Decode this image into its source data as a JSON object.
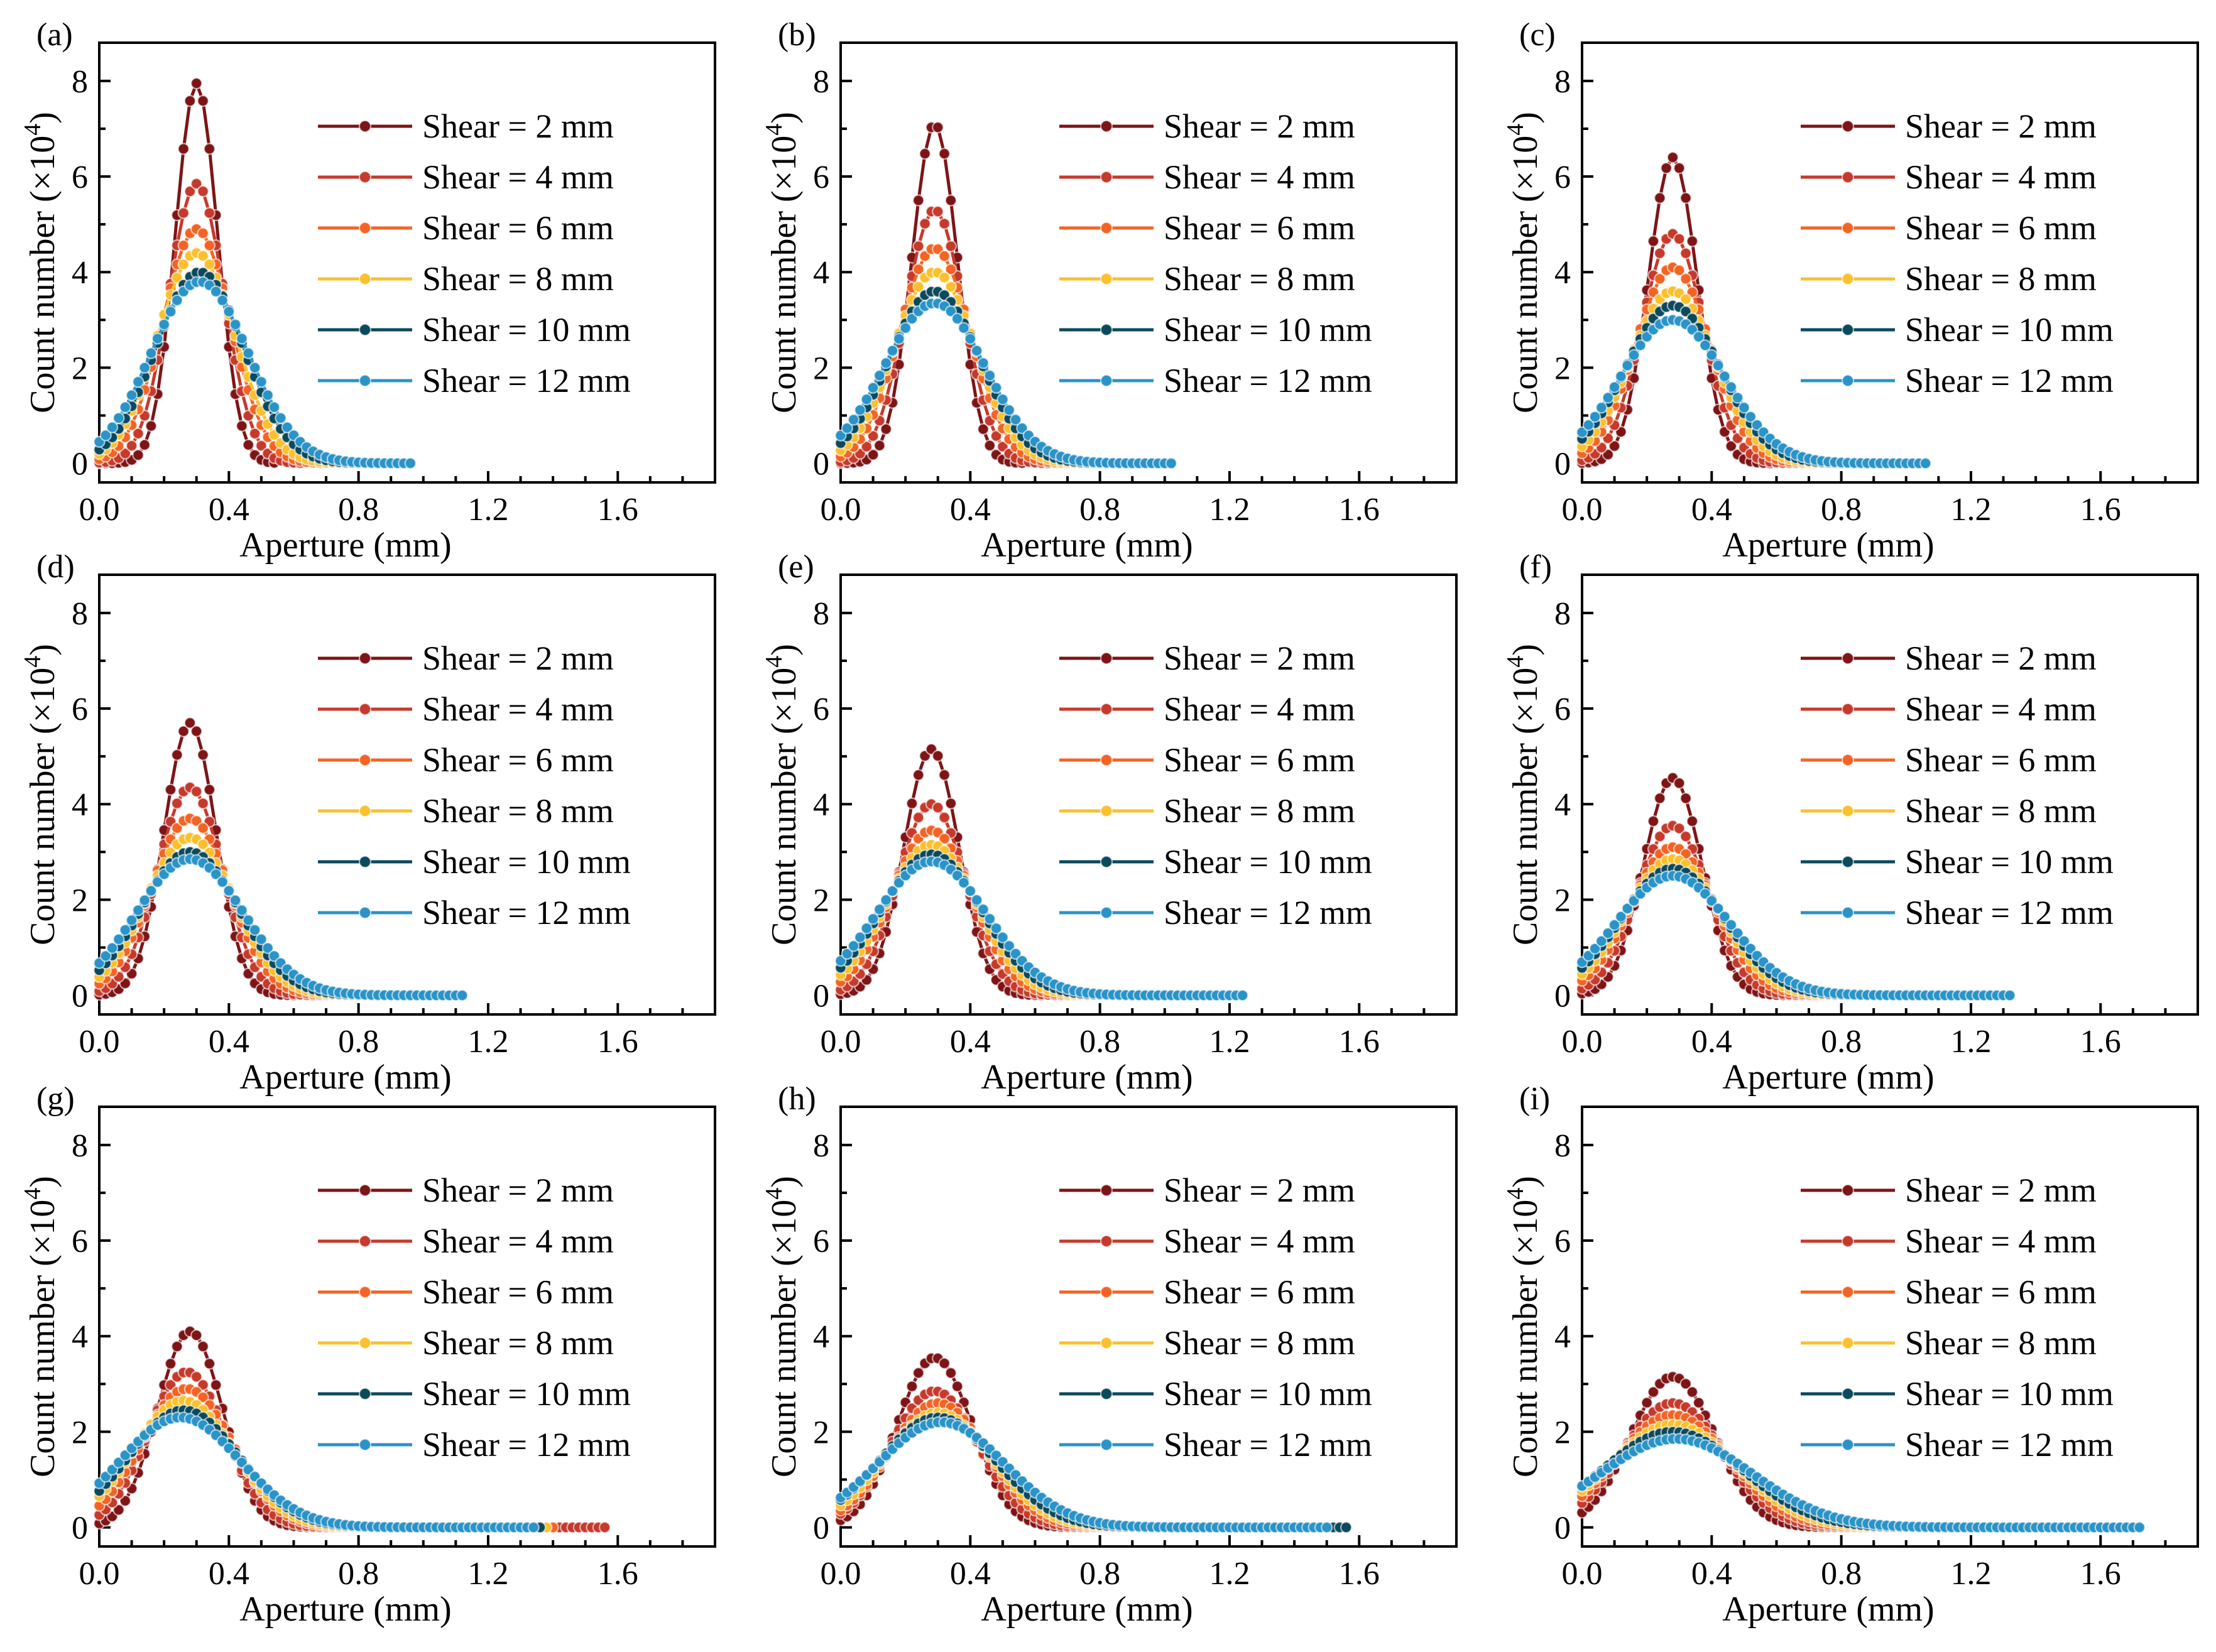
{
  "figure": {
    "colors": {
      "shear_2": "#7e1416",
      "shear_4": "#c53a2c",
      "shear_6": "#f36424",
      "shear_8": "#fbc02d",
      "shear_10": "#0b4a5c",
      "shear_12": "#2a93c8"
    }
  },
  "chart_data": [
    {
      "panel": "(a)",
      "type": "line",
      "xlabel": "Aperture (mm)",
      "ylabel": "Count number (×10",
      "ylabel_exp": "4",
      "ylabel_close": ")",
      "xlim": [
        0,
        1.9
      ],
      "ylim": [
        -0.4,
        8.8
      ],
      "xticks": [
        "0.0",
        "0.4",
        "0.8",
        "1.2",
        "1.6"
      ],
      "yticks": [
        "0",
        "2",
        "4",
        "6",
        "8"
      ],
      "series": [
        {
          "name": "Shear = 2 mm",
          "color": "#7e1416",
          "peak": 7.95,
          "mu": 0.3,
          "sigma": 0.065,
          "xmax": 0.54
        },
        {
          "name": "Shear = 4 mm",
          "color": "#c53a2c",
          "peak": 5.85,
          "mu": 0.3,
          "sigma": 0.085,
          "xmax": 0.62
        },
        {
          "name": "Shear = 6 mm",
          "color": "#f36424",
          "peak": 4.9,
          "mu": 0.3,
          "sigma": 0.105,
          "xmax": 0.7
        },
        {
          "name": "Shear = 8 mm",
          "color": "#fbc02d",
          "peak": 4.4,
          "mu": 0.3,
          "sigma": 0.12,
          "xmax": 0.78
        },
        {
          "name": "Shear = 10 mm",
          "color": "#0b4a5c",
          "peak": 4.0,
          "mu": 0.31,
          "sigma": 0.135,
          "xmax": 0.88
        },
        {
          "name": "Shear = 12 mm",
          "color": "#2a93c8",
          "peak": 3.8,
          "mu": 0.31,
          "sigma": 0.15,
          "xmax": 0.96
        }
      ]
    },
    {
      "panel": "(b)",
      "type": "line",
      "xlabel": "Aperture (mm)",
      "ylabel": "Count number (×10",
      "ylabel_exp": "4",
      "ylabel_close": ")",
      "xlim": [
        0,
        1.9
      ],
      "ylim": [
        -0.4,
        8.8
      ],
      "xticks": [
        "0.0",
        "0.4",
        "0.8",
        "1.2",
        "1.6"
      ],
      "yticks": [
        "0",
        "2",
        "4",
        "6",
        "8"
      ],
      "series": [
        {
          "name": "Shear = 2 mm",
          "color": "#7e1416",
          "peak": 7.1,
          "mu": 0.29,
          "sigma": 0.07,
          "xmax": 0.56
        },
        {
          "name": "Shear = 4 mm",
          "color": "#c53a2c",
          "peak": 5.3,
          "mu": 0.29,
          "sigma": 0.09,
          "xmax": 0.64
        },
        {
          "name": "Shear = 6 mm",
          "color": "#f36424",
          "peak": 4.5,
          "mu": 0.29,
          "sigma": 0.11,
          "xmax": 0.74
        },
        {
          "name": "Shear = 8 mm",
          "color": "#fbc02d",
          "peak": 4.0,
          "mu": 0.29,
          "sigma": 0.125,
          "xmax": 0.82
        },
        {
          "name": "Shear = 10 mm",
          "color": "#0b4a5c",
          "peak": 3.6,
          "mu": 0.29,
          "sigma": 0.14,
          "xmax": 0.92
        },
        {
          "name": "Shear = 12 mm",
          "color": "#2a93c8",
          "peak": 3.35,
          "mu": 0.29,
          "sigma": 0.155,
          "xmax": 1.02
        }
      ]
    },
    {
      "panel": "(c)",
      "type": "line",
      "xlabel": "Aperture (mm)",
      "ylabel": "Count number (×10",
      "ylabel_exp": "4",
      "ylabel_close": ")",
      "xlim": [
        0,
        1.9
      ],
      "ylim": [
        -0.4,
        8.8
      ],
      "xticks": [
        "0.0",
        "0.4",
        "0.8",
        "1.2",
        "1.6"
      ],
      "yticks": [
        "0",
        "2",
        "4",
        "6",
        "8"
      ],
      "series": [
        {
          "name": "Shear = 2 mm",
          "color": "#7e1416",
          "peak": 6.4,
          "mu": 0.28,
          "sigma": 0.075,
          "xmax": 0.58
        },
        {
          "name": "Shear = 4 mm",
          "color": "#c53a2c",
          "peak": 4.8,
          "mu": 0.28,
          "sigma": 0.095,
          "xmax": 0.68
        },
        {
          "name": "Shear = 6 mm",
          "color": "#f36424",
          "peak": 4.1,
          "mu": 0.28,
          "sigma": 0.115,
          "xmax": 0.78
        },
        {
          "name": "Shear = 8 mm",
          "color": "#fbc02d",
          "peak": 3.6,
          "mu": 0.28,
          "sigma": 0.13,
          "xmax": 0.86
        },
        {
          "name": "Shear = 10 mm",
          "color": "#0b4a5c",
          "peak": 3.3,
          "mu": 0.28,
          "sigma": 0.145,
          "xmax": 0.96
        },
        {
          "name": "Shear = 12 mm",
          "color": "#2a93c8",
          "peak": 3.0,
          "mu": 0.28,
          "sigma": 0.16,
          "xmax": 1.06
        }
      ]
    },
    {
      "panel": "(d)",
      "type": "line",
      "xlabel": "Aperture (mm)",
      "ylabel": "Count number (×10",
      "ylabel_exp": "4",
      "ylabel_close": ")",
      "xlim": [
        0,
        1.9
      ],
      "ylim": [
        -0.4,
        8.8
      ],
      "xticks": [
        "0.0",
        "0.4",
        "0.8",
        "1.2",
        "1.6"
      ],
      "yticks": [
        "0",
        "2",
        "4",
        "6",
        "8"
      ],
      "series": [
        {
          "name": "Shear = 2 mm",
          "color": "#7e1416",
          "peak": 5.7,
          "mu": 0.28,
          "sigma": 0.08,
          "xmax": 0.6
        },
        {
          "name": "Shear = 4 mm",
          "color": "#c53a2c",
          "peak": 4.35,
          "mu": 0.28,
          "sigma": 0.1,
          "xmax": 0.7
        },
        {
          "name": "Shear = 6 mm",
          "color": "#f36424",
          "peak": 3.7,
          "mu": 0.28,
          "sigma": 0.12,
          "xmax": 0.8
        },
        {
          "name": "Shear = 8 mm",
          "color": "#fbc02d",
          "peak": 3.3,
          "mu": 0.28,
          "sigma": 0.135,
          "xmax": 0.9
        },
        {
          "name": "Shear = 10 mm",
          "color": "#0b4a5c",
          "peak": 3.0,
          "mu": 0.28,
          "sigma": 0.15,
          "xmax": 1.0
        },
        {
          "name": "Shear = 12 mm",
          "color": "#2a93c8",
          "peak": 2.85,
          "mu": 0.28,
          "sigma": 0.165,
          "xmax": 1.12
        }
      ]
    },
    {
      "panel": "(e)",
      "type": "line",
      "xlabel": "Aperture (mm)",
      "ylabel": "Count number (×10",
      "ylabel_exp": "4",
      "ylabel_close": ")",
      "xlim": [
        0,
        1.9
      ],
      "ylim": [
        -0.4,
        8.8
      ],
      "xticks": [
        "0.0",
        "0.4",
        "0.8",
        "1.2",
        "1.6"
      ],
      "yticks": [
        "0",
        "2",
        "4",
        "6",
        "8"
      ],
      "series": [
        {
          "name": "Shear = 2 mm",
          "color": "#7e1416",
          "peak": 5.15,
          "mu": 0.28,
          "sigma": 0.085,
          "xmax": 0.62
        },
        {
          "name": "Shear = 4 mm",
          "color": "#c53a2c",
          "peak": 4.0,
          "mu": 0.28,
          "sigma": 0.105,
          "xmax": 0.74
        },
        {
          "name": "Shear = 6 mm",
          "color": "#f36424",
          "peak": 3.45,
          "mu": 0.28,
          "sigma": 0.125,
          "xmax": 0.86
        },
        {
          "name": "Shear = 8 mm",
          "color": "#fbc02d",
          "peak": 3.15,
          "mu": 0.28,
          "sigma": 0.14,
          "xmax": 0.98
        },
        {
          "name": "Shear = 10 mm",
          "color": "#0b4a5c",
          "peak": 2.95,
          "mu": 0.28,
          "sigma": 0.155,
          "xmax": 1.1
        },
        {
          "name": "Shear = 12 mm",
          "color": "#2a93c8",
          "peak": 2.8,
          "mu": 0.28,
          "sigma": 0.17,
          "xmax": 1.24
        }
      ]
    },
    {
      "panel": "(f)",
      "type": "line",
      "xlabel": "Aperture (mm)",
      "ylabel": "Count number (×10",
      "ylabel_exp": "4",
      "ylabel_close": ")",
      "xlim": [
        0,
        1.9
      ],
      "ylim": [
        -0.4,
        8.8
      ],
      "xticks": [
        "0.0",
        "0.4",
        "0.8",
        "1.2",
        "1.6"
      ],
      "yticks": [
        "0",
        "2",
        "4",
        "6",
        "8"
      ],
      "series": [
        {
          "name": "Shear = 2 mm",
          "color": "#7e1416",
          "peak": 4.55,
          "mu": 0.28,
          "sigma": 0.09,
          "xmax": 0.66
        },
        {
          "name": "Shear = 4 mm",
          "color": "#c53a2c",
          "peak": 3.55,
          "mu": 0.28,
          "sigma": 0.11,
          "xmax": 0.78
        },
        {
          "name": "Shear = 6 mm",
          "color": "#f36424",
          "peak": 3.1,
          "mu": 0.28,
          "sigma": 0.13,
          "xmax": 0.92
        },
        {
          "name": "Shear = 8 mm",
          "color": "#fbc02d",
          "peak": 2.85,
          "mu": 0.28,
          "sigma": 0.145,
          "xmax": 1.04
        },
        {
          "name": "Shear = 10 mm",
          "color": "#0b4a5c",
          "peak": 2.65,
          "mu": 0.28,
          "sigma": 0.16,
          "xmax": 1.18
        },
        {
          "name": "Shear = 12 mm",
          "color": "#2a93c8",
          "peak": 2.5,
          "mu": 0.28,
          "sigma": 0.175,
          "xmax": 1.32
        }
      ]
    },
    {
      "panel": "(g)",
      "type": "line",
      "xlabel": "Aperture (mm)",
      "ylabel": "Count number (×10",
      "ylabel_exp": "4",
      "ylabel_close": ")",
      "xlim": [
        0,
        1.9
      ],
      "ylim": [
        -0.4,
        8.8
      ],
      "xticks": [
        "0.0",
        "0.4",
        "0.8",
        "1.2",
        "1.6"
      ],
      "yticks": [
        "0",
        "2",
        "4",
        "6",
        "8"
      ],
      "series": [
        {
          "name": "Shear = 2 mm",
          "color": "#7e1416",
          "peak": 4.1,
          "mu": 0.28,
          "sigma": 0.1,
          "xmax": 1.56
        },
        {
          "name": "Shear = 4 mm",
          "color": "#c53a2c",
          "peak": 3.25,
          "mu": 0.27,
          "sigma": 0.12,
          "xmax": 1.56
        },
        {
          "name": "Shear = 6 mm",
          "color": "#f36424",
          "peak": 2.9,
          "mu": 0.27,
          "sigma": 0.14,
          "xmax": 1.4
        },
        {
          "name": "Shear = 8 mm",
          "color": "#fbc02d",
          "peak": 2.65,
          "mu": 0.26,
          "sigma": 0.155,
          "xmax": 1.38
        },
        {
          "name": "Shear = 10 mm",
          "color": "#0b4a5c",
          "peak": 2.45,
          "mu": 0.26,
          "sigma": 0.17,
          "xmax": 1.36
        },
        {
          "name": "Shear = 12 mm",
          "color": "#2a93c8",
          "peak": 2.3,
          "mu": 0.25,
          "sigma": 0.185,
          "xmax": 1.34
        }
      ]
    },
    {
      "panel": "(h)",
      "type": "line",
      "xlabel": "Aperture (mm)",
      "ylabel": "Count number (×10",
      "ylabel_exp": "4",
      "ylabel_close": ")",
      "xlim": [
        0,
        1.9
      ],
      "ylim": [
        -0.4,
        8.8
      ],
      "xticks": [
        "0.0",
        "0.4",
        "0.8",
        "1.2",
        "1.6"
      ],
      "yticks": [
        "0",
        "2",
        "4",
        "6",
        "8"
      ],
      "series": [
        {
          "name": "Shear = 2 mm",
          "color": "#7e1416",
          "peak": 3.55,
          "mu": 0.29,
          "sigma": 0.115,
          "xmax": 1.4
        },
        {
          "name": "Shear = 4 mm",
          "color": "#c53a2c",
          "peak": 2.85,
          "mu": 0.29,
          "sigma": 0.135,
          "xmax": 1.44
        },
        {
          "name": "Shear = 6 mm",
          "color": "#f36424",
          "peak": 2.6,
          "mu": 0.3,
          "sigma": 0.15,
          "xmax": 1.48
        },
        {
          "name": "Shear = 8 mm",
          "color": "#fbc02d",
          "peak": 2.4,
          "mu": 0.3,
          "sigma": 0.165,
          "xmax": 1.52
        },
        {
          "name": "Shear = 10 mm",
          "color": "#0b4a5c",
          "peak": 2.3,
          "mu": 0.3,
          "sigma": 0.18,
          "xmax": 1.56
        },
        {
          "name": "Shear = 12 mm",
          "color": "#2a93c8",
          "peak": 2.2,
          "mu": 0.31,
          "sigma": 0.195,
          "xmax": 1.5
        }
      ]
    },
    {
      "panel": "(i)",
      "type": "line",
      "xlabel": "Aperture (mm)",
      "ylabel": "Count number (×10",
      "ylabel_exp": "4",
      "ylabel_close": ")",
      "xlim": [
        0,
        1.9
      ],
      "ylim": [
        -0.4,
        8.8
      ],
      "xticks": [
        "0.0",
        "0.4",
        "0.8",
        "1.2",
        "1.6"
      ],
      "yticks": [
        "0",
        "2",
        "4",
        "6",
        "8"
      ],
      "series": [
        {
          "name": "Shear = 2 mm",
          "color": "#7e1416",
          "peak": 3.15,
          "mu": 0.28,
          "sigma": 0.13,
          "xmax": 1.5
        },
        {
          "name": "Shear = 4 mm",
          "color": "#c53a2c",
          "peak": 2.6,
          "mu": 0.28,
          "sigma": 0.155,
          "xmax": 1.56
        },
        {
          "name": "Shear = 6 mm",
          "color": "#f36424",
          "peak": 2.35,
          "mu": 0.28,
          "sigma": 0.175,
          "xmax": 1.6
        },
        {
          "name": "Shear = 8 mm",
          "color": "#fbc02d",
          "peak": 2.15,
          "mu": 0.28,
          "sigma": 0.195,
          "xmax": 1.64
        },
        {
          "name": "Shear = 10 mm",
          "color": "#0b4a5c",
          "peak": 2.0,
          "mu": 0.28,
          "sigma": 0.215,
          "xmax": 1.68
        },
        {
          "name": "Shear = 12 mm",
          "color": "#2a93c8",
          "peak": 1.85,
          "mu": 0.29,
          "sigma": 0.235,
          "xmax": 1.72
        }
      ]
    }
  ]
}
